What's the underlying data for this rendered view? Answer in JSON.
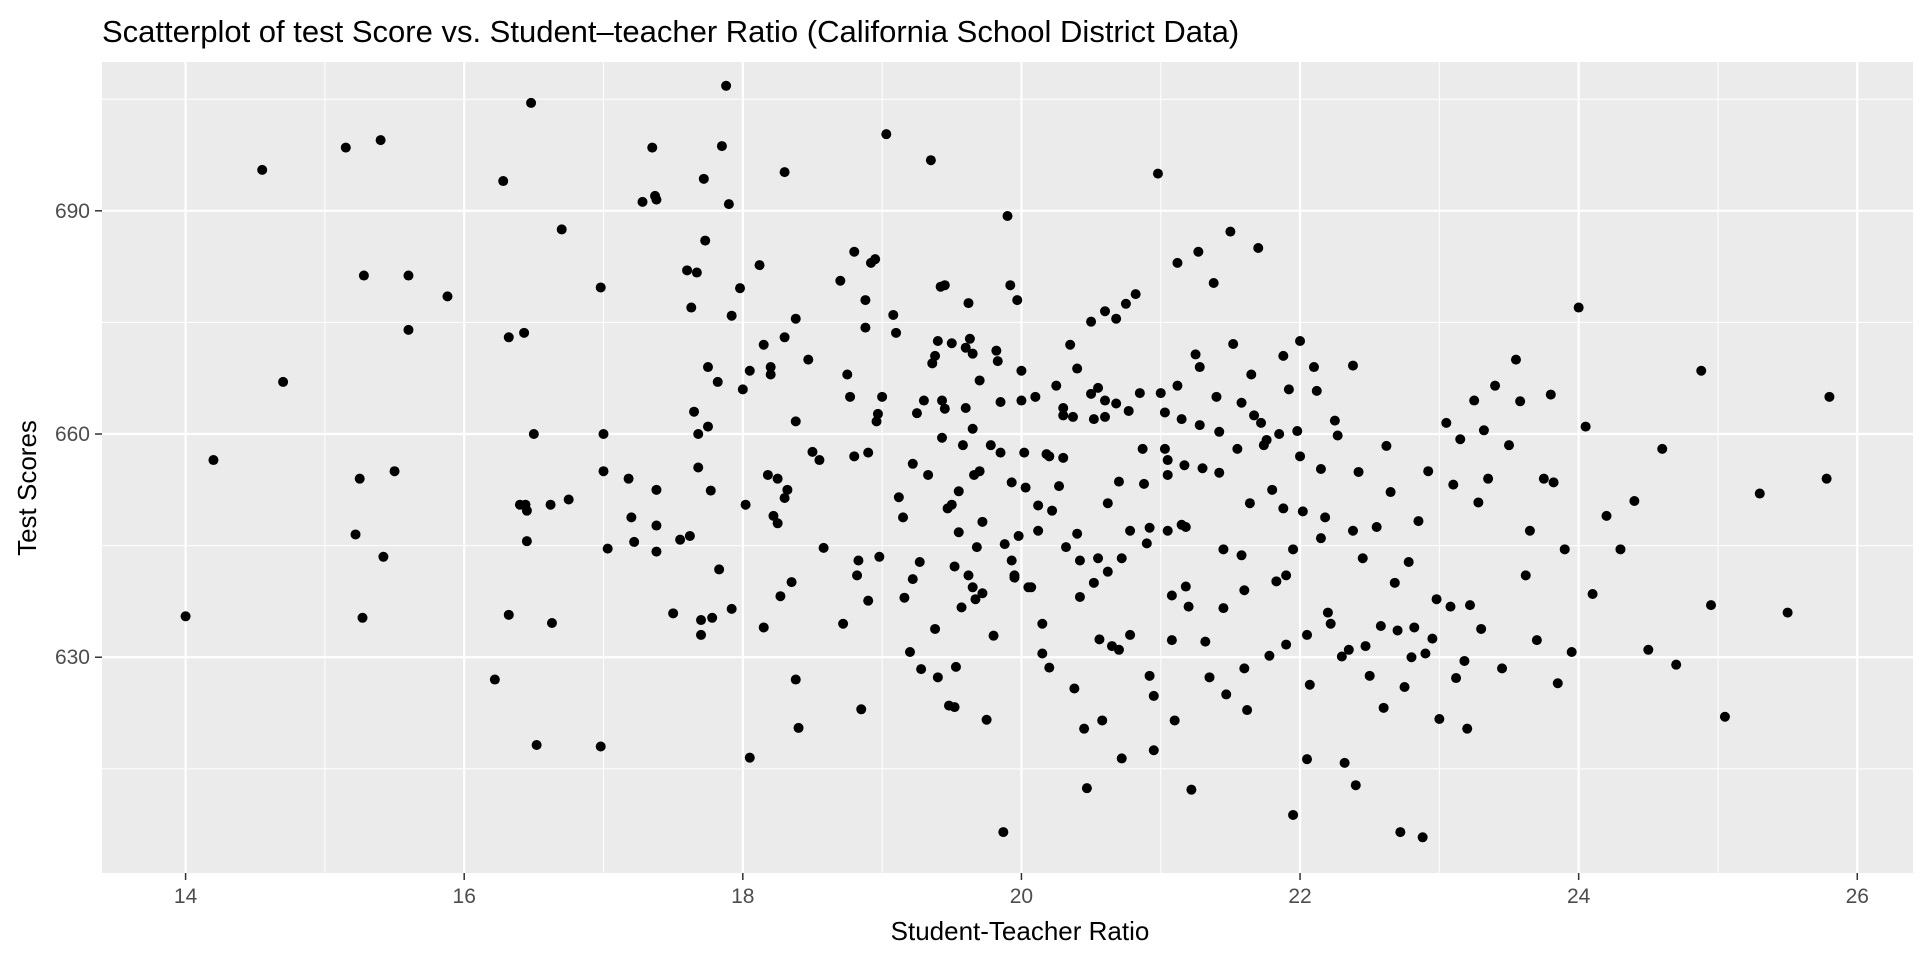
{
  "chart_data": {
    "type": "scatter",
    "title": "Scatterplot of test Score vs. Student–teacher Ratio (California School District Data)",
    "xlabel": "Student-Teacher Ratio",
    "ylabel": "Test Scores",
    "xlim": [
      13.4,
      26.4
    ],
    "ylim": [
      601.0,
      710.0
    ],
    "x_ticks": [
      14,
      16,
      18,
      20,
      22,
      24,
      26
    ],
    "y_ticks": [
      630,
      660,
      690
    ],
    "grid": true,
    "point_color": "#000000",
    "panel_color": "#ebebeb",
    "grid_color": "#ffffff",
    "points": [
      [
        14.0,
        635.5
      ],
      [
        14.2,
        656.5
      ],
      [
        14.55,
        695.5
      ],
      [
        14.7,
        667.0
      ],
      [
        15.15,
        698.5
      ],
      [
        15.4,
        699.5
      ],
      [
        15.22,
        646.5
      ],
      [
        15.25,
        654.0
      ],
      [
        15.28,
        681.3
      ],
      [
        15.27,
        635.3
      ],
      [
        15.42,
        643.5
      ],
      [
        15.5,
        655.0
      ],
      [
        15.6,
        674.0
      ],
      [
        15.6,
        681.3
      ],
      [
        15.88,
        678.5
      ],
      [
        16.22,
        627.0
      ],
      [
        16.28,
        694.0
      ],
      [
        16.32,
        673.0
      ],
      [
        16.32,
        635.7
      ],
      [
        16.4,
        650.5
      ],
      [
        16.43,
        673.6
      ],
      [
        16.44,
        650.5
      ],
      [
        16.45,
        645.6
      ],
      [
        16.45,
        649.7
      ],
      [
        16.48,
        704.5
      ],
      [
        16.5,
        660.0
      ],
      [
        16.52,
        618.2
      ],
      [
        16.62,
        650.5
      ],
      [
        16.63,
        634.6
      ],
      [
        16.7,
        687.5
      ],
      [
        16.75,
        651.2
      ],
      [
        16.98,
        679.7
      ],
      [
        16.98,
        618.0
      ],
      [
        17.0,
        660.0
      ],
      [
        17.0,
        655.0
      ],
      [
        17.03,
        644.6
      ],
      [
        17.18,
        654.0
      ],
      [
        17.2,
        648.8
      ],
      [
        17.22,
        645.5
      ],
      [
        17.28,
        691.2
      ],
      [
        17.35,
        698.5
      ],
      [
        17.37,
        692.0
      ],
      [
        17.38,
        691.5
      ],
      [
        17.38,
        652.5
      ],
      [
        17.38,
        647.7
      ],
      [
        17.38,
        644.2
      ],
      [
        17.5,
        635.9
      ],
      [
        17.55,
        645.8
      ],
      [
        17.6,
        682.0
      ],
      [
        17.62,
        646.3
      ],
      [
        17.63,
        677.0
      ],
      [
        17.65,
        663.0
      ],
      [
        17.67,
        681.7
      ],
      [
        17.68,
        660.0
      ],
      [
        17.68,
        655.5
      ],
      [
        17.7,
        635.0
      ],
      [
        17.7,
        633.0
      ],
      [
        17.72,
        694.3
      ],
      [
        17.73,
        686.0
      ],
      [
        17.75,
        669.0
      ],
      [
        17.75,
        661.0
      ],
      [
        17.77,
        652.4
      ],
      [
        17.78,
        635.3
      ],
      [
        17.82,
        667.0
      ],
      [
        17.83,
        641.8
      ],
      [
        17.85,
        698.7
      ],
      [
        17.88,
        706.8
      ],
      [
        17.9,
        690.9
      ],
      [
        17.92,
        675.9
      ],
      [
        17.92,
        636.5
      ],
      [
        17.98,
        679.6
      ],
      [
        18.0,
        666.0
      ],
      [
        18.02,
        650.5
      ],
      [
        18.05,
        668.5
      ],
      [
        18.05,
        616.5
      ],
      [
        18.12,
        682.7
      ],
      [
        18.15,
        672.0
      ],
      [
        18.15,
        634.0
      ],
      [
        18.18,
        654.5
      ],
      [
        18.2,
        669.0
      ],
      [
        18.2,
        668.0
      ],
      [
        18.22,
        649.0
      ],
      [
        18.25,
        648.0
      ],
      [
        18.25,
        654.0
      ],
      [
        18.27,
        638.2
      ],
      [
        18.3,
        695.2
      ],
      [
        18.3,
        673.0
      ],
      [
        18.3,
        651.4
      ],
      [
        18.32,
        652.5
      ],
      [
        18.35,
        640.1
      ],
      [
        18.38,
        675.5
      ],
      [
        18.38,
        661.7
      ],
      [
        18.38,
        627.0
      ],
      [
        18.4,
        620.5
      ],
      [
        18.47,
        670.0
      ],
      [
        18.5,
        657.6
      ],
      [
        18.55,
        656.5
      ],
      [
        18.58,
        644.7
      ],
      [
        18.7,
        680.6
      ],
      [
        18.72,
        634.5
      ],
      [
        18.75,
        668.0
      ],
      [
        18.77,
        665.0
      ],
      [
        18.8,
        684.5
      ],
      [
        18.8,
        657.0
      ],
      [
        18.82,
        641.0
      ],
      [
        18.83,
        643.0
      ],
      [
        18.85,
        623.0
      ],
      [
        18.88,
        674.3
      ],
      [
        18.88,
        678.0
      ],
      [
        18.9,
        657.5
      ],
      [
        18.9,
        637.6
      ],
      [
        18.92,
        683.0
      ],
      [
        18.95,
        683.5
      ],
      [
        18.96,
        661.7
      ],
      [
        18.97,
        662.7
      ],
      [
        18.98,
        643.5
      ],
      [
        19.0,
        665.0
      ],
      [
        19.03,
        700.3
      ],
      [
        19.08,
        676.0
      ],
      [
        19.1,
        673.6
      ],
      [
        19.12,
        651.5
      ],
      [
        19.15,
        648.8
      ],
      [
        19.16,
        638.0
      ],
      [
        19.2,
        630.7
      ],
      [
        19.22,
        656.0
      ],
      [
        19.22,
        640.5
      ],
      [
        19.25,
        662.8
      ],
      [
        19.27,
        642.8
      ],
      [
        19.28,
        628.4
      ],
      [
        19.3,
        664.5
      ],
      [
        19.33,
        654.5
      ],
      [
        19.35,
        696.8
      ],
      [
        19.36,
        669.5
      ],
      [
        19.38,
        670.5
      ],
      [
        19.38,
        633.8
      ],
      [
        19.4,
        672.5
      ],
      [
        19.4,
        627.3
      ],
      [
        19.42,
        679.8
      ],
      [
        19.43,
        659.5
      ],
      [
        19.43,
        664.5
      ],
      [
        19.45,
        680.0
      ],
      [
        19.45,
        663.4
      ],
      [
        19.47,
        650.0
      ],
      [
        19.48,
        623.5
      ],
      [
        19.5,
        672.2
      ],
      [
        19.5,
        650.5
      ],
      [
        19.52,
        642.2
      ],
      [
        19.52,
        623.3
      ],
      [
        19.53,
        628.7
      ],
      [
        19.55,
        652.3
      ],
      [
        19.55,
        646.8
      ],
      [
        19.57,
        636.7
      ],
      [
        19.58,
        658.5
      ],
      [
        19.6,
        671.6
      ],
      [
        19.6,
        663.5
      ],
      [
        19.62,
        677.6
      ],
      [
        19.62,
        641.0
      ],
      [
        19.63,
        672.8
      ],
      [
        19.65,
        670.8
      ],
      [
        19.65,
        660.7
      ],
      [
        19.65,
        639.4
      ],
      [
        19.66,
        654.5
      ],
      [
        19.67,
        637.8
      ],
      [
        19.68,
        644.8
      ],
      [
        19.7,
        667.2
      ],
      [
        19.7,
        655.0
      ],
      [
        19.72,
        648.2
      ],
      [
        19.72,
        638.6
      ],
      [
        19.75,
        621.6
      ],
      [
        19.78,
        658.5
      ],
      [
        19.8,
        632.9
      ],
      [
        19.82,
        671.2
      ],
      [
        19.83,
        669.8
      ],
      [
        19.85,
        664.3
      ],
      [
        19.85,
        657.5
      ],
      [
        19.87,
        606.5
      ],
      [
        19.88,
        645.2
      ],
      [
        19.9,
        689.3
      ],
      [
        19.92,
        680.0
      ],
      [
        19.93,
        653.5
      ],
      [
        19.93,
        643.0
      ],
      [
        19.95,
        641.0
      ],
      [
        19.95,
        640.7
      ],
      [
        19.97,
        678.0
      ],
      [
        19.98,
        646.3
      ],
      [
        20.0,
        668.5
      ],
      [
        20.0,
        664.5
      ],
      [
        20.02,
        657.5
      ],
      [
        20.03,
        652.8
      ],
      [
        20.05,
        639.4
      ],
      [
        20.07,
        639.4
      ],
      [
        20.1,
        665.0
      ],
      [
        20.12,
        647.0
      ],
      [
        20.12,
        650.4
      ],
      [
        20.15,
        634.5
      ],
      [
        20.15,
        630.5
      ],
      [
        20.18,
        657.3
      ],
      [
        20.2,
        657.0
      ],
      [
        20.2,
        628.6
      ],
      [
        20.22,
        649.7
      ],
      [
        20.25,
        666.5
      ],
      [
        20.27,
        653.0
      ],
      [
        20.3,
        663.5
      ],
      [
        20.3,
        662.5
      ],
      [
        20.3,
        656.8
      ],
      [
        20.32,
        644.8
      ],
      [
        20.35,
        672.0
      ],
      [
        20.37,
        662.3
      ],
      [
        20.38,
        625.8
      ],
      [
        20.4,
        668.8
      ],
      [
        20.4,
        646.6
      ],
      [
        20.42,
        643.0
      ],
      [
        20.42,
        638.1
      ],
      [
        20.45,
        620.4
      ],
      [
        20.47,
        612.4
      ],
      [
        20.5,
        675.1
      ],
      [
        20.5,
        665.4
      ],
      [
        20.52,
        662.0
      ],
      [
        20.52,
        640.0
      ],
      [
        20.55,
        666.2
      ],
      [
        20.55,
        643.3
      ],
      [
        20.56,
        632.4
      ],
      [
        20.58,
        621.5
      ],
      [
        20.6,
        676.5
      ],
      [
        20.6,
        664.5
      ],
      [
        20.6,
        662.3
      ],
      [
        20.62,
        650.7
      ],
      [
        20.62,
        641.5
      ],
      [
        20.65,
        631.5
      ],
      [
        20.68,
        675.5
      ],
      [
        20.68,
        664.1
      ],
      [
        20.7,
        653.6
      ],
      [
        20.7,
        631.0
      ],
      [
        20.72,
        643.3
      ],
      [
        20.72,
        616.4
      ],
      [
        20.75,
        677.5
      ],
      [
        20.77,
        663.1
      ],
      [
        20.78,
        633.0
      ],
      [
        20.78,
        647.0
      ],
      [
        20.82,
        678.8
      ],
      [
        20.85,
        665.5
      ],
      [
        20.87,
        658.0
      ],
      [
        20.88,
        653.3
      ],
      [
        20.9,
        645.3
      ],
      [
        20.92,
        647.4
      ],
      [
        20.92,
        627.5
      ],
      [
        20.95,
        624.8
      ],
      [
        20.95,
        617.5
      ],
      [
        20.98,
        695.0
      ],
      [
        21.0,
        665.5
      ],
      [
        21.03,
        662.9
      ],
      [
        21.03,
        658.0
      ],
      [
        21.05,
        656.5
      ],
      [
        21.05,
        654.5
      ],
      [
        21.05,
        647.0
      ],
      [
        21.08,
        638.3
      ],
      [
        21.08,
        632.3
      ],
      [
        21.1,
        621.5
      ],
      [
        21.12,
        683.0
      ],
      [
        21.12,
        666.5
      ],
      [
        21.15,
        662.0
      ],
      [
        21.15,
        647.8
      ],
      [
        21.17,
        655.8
      ],
      [
        21.18,
        647.5
      ],
      [
        21.18,
        639.5
      ],
      [
        21.2,
        636.8
      ],
      [
        21.22,
        612.2
      ],
      [
        21.25,
        670.7
      ],
      [
        21.27,
        684.5
      ],
      [
        21.28,
        669.0
      ],
      [
        21.28,
        661.2
      ],
      [
        21.3,
        655.4
      ],
      [
        21.32,
        632.1
      ],
      [
        21.35,
        627.3
      ],
      [
        21.38,
        680.3
      ],
      [
        21.4,
        665.0
      ],
      [
        21.42,
        660.3
      ],
      [
        21.42,
        654.8
      ],
      [
        21.45,
        644.5
      ],
      [
        21.45,
        636.6
      ],
      [
        21.47,
        625.0
      ],
      [
        21.5,
        687.2
      ],
      [
        21.52,
        672.1
      ],
      [
        21.55,
        658.0
      ],
      [
        21.58,
        664.2
      ],
      [
        21.58,
        643.7
      ],
      [
        21.6,
        639.0
      ],
      [
        21.6,
        628.5
      ],
      [
        21.62,
        622.9
      ],
      [
        21.64,
        650.7
      ],
      [
        21.65,
        668.0
      ],
      [
        21.67,
        662.5
      ],
      [
        21.7,
        685.0
      ],
      [
        21.72,
        661.5
      ],
      [
        21.74,
        658.5
      ],
      [
        21.76,
        659.2
      ],
      [
        21.78,
        630.2
      ],
      [
        21.8,
        652.5
      ],
      [
        21.83,
        640.2
      ],
      [
        21.85,
        660.0
      ],
      [
        21.88,
        650.0
      ],
      [
        21.88,
        670.5
      ],
      [
        21.9,
        641.0
      ],
      [
        21.9,
        631.7
      ],
      [
        21.92,
        666.0
      ],
      [
        21.95,
        644.5
      ],
      [
        21.95,
        608.8
      ],
      [
        21.98,
        660.4
      ],
      [
        22.0,
        672.5
      ],
      [
        22.0,
        657.0
      ],
      [
        22.02,
        649.6
      ],
      [
        22.05,
        633.0
      ],
      [
        22.05,
        616.3
      ],
      [
        22.07,
        626.3
      ],
      [
        22.1,
        669.0
      ],
      [
        22.12,
        665.8
      ],
      [
        22.15,
        655.3
      ],
      [
        22.15,
        646.0
      ],
      [
        22.18,
        648.8
      ],
      [
        22.2,
        636.0
      ],
      [
        22.22,
        634.5
      ],
      [
        22.25,
        661.8
      ],
      [
        22.27,
        659.8
      ],
      [
        22.3,
        630.1
      ],
      [
        22.32,
        615.8
      ],
      [
        22.35,
        631.0
      ],
      [
        22.38,
        669.2
      ],
      [
        22.38,
        647.0
      ],
      [
        22.4,
        612.8
      ],
      [
        22.42,
        654.9
      ],
      [
        22.45,
        643.3
      ],
      [
        22.47,
        631.5
      ],
      [
        22.5,
        627.5
      ],
      [
        22.55,
        647.5
      ],
      [
        22.58,
        634.2
      ],
      [
        22.6,
        623.2
      ],
      [
        22.62,
        658.4
      ],
      [
        22.65,
        652.2
      ],
      [
        22.68,
        640.0
      ],
      [
        22.7,
        633.6
      ],
      [
        22.72,
        606.5
      ],
      [
        22.75,
        626.0
      ],
      [
        22.78,
        642.8
      ],
      [
        22.8,
        630.0
      ],
      [
        22.82,
        634.0
      ],
      [
        22.85,
        648.3
      ],
      [
        22.88,
        605.8
      ],
      [
        22.9,
        630.5
      ],
      [
        22.92,
        655.0
      ],
      [
        22.95,
        632.5
      ],
      [
        22.98,
        637.8
      ],
      [
        23.0,
        621.7
      ],
      [
        23.05,
        661.5
      ],
      [
        23.08,
        636.8
      ],
      [
        23.1,
        653.2
      ],
      [
        23.12,
        627.2
      ],
      [
        23.15,
        659.3
      ],
      [
        23.18,
        629.5
      ],
      [
        23.2,
        620.4
      ],
      [
        23.22,
        637.0
      ],
      [
        23.25,
        664.5
      ],
      [
        23.28,
        650.8
      ],
      [
        23.3,
        633.8
      ],
      [
        23.32,
        660.5
      ],
      [
        23.35,
        654.0
      ],
      [
        23.4,
        666.5
      ],
      [
        23.45,
        628.5
      ],
      [
        23.5,
        658.5
      ],
      [
        23.55,
        670.0
      ],
      [
        23.58,
        664.4
      ],
      [
        23.62,
        641.0
      ],
      [
        23.65,
        647.0
      ],
      [
        23.7,
        632.3
      ],
      [
        23.75,
        654.0
      ],
      [
        23.8,
        665.3
      ],
      [
        23.82,
        653.5
      ],
      [
        23.85,
        626.5
      ],
      [
        23.9,
        644.5
      ],
      [
        23.95,
        630.7
      ],
      [
        24.0,
        677.0
      ],
      [
        24.05,
        661.0
      ],
      [
        24.1,
        638.5
      ],
      [
        24.2,
        649.0
      ],
      [
        24.3,
        644.5
      ],
      [
        24.4,
        651.0
      ],
      [
        24.5,
        631.0
      ],
      [
        24.6,
        658.0
      ],
      [
        24.7,
        629.0
      ],
      [
        24.88,
        668.5
      ],
      [
        24.95,
        637.0
      ],
      [
        25.05,
        622.0
      ],
      [
        25.3,
        652.0
      ],
      [
        25.5,
        636.0
      ],
      [
        25.78,
        654.0
      ],
      [
        25.8,
        665.0
      ]
    ]
  }
}
